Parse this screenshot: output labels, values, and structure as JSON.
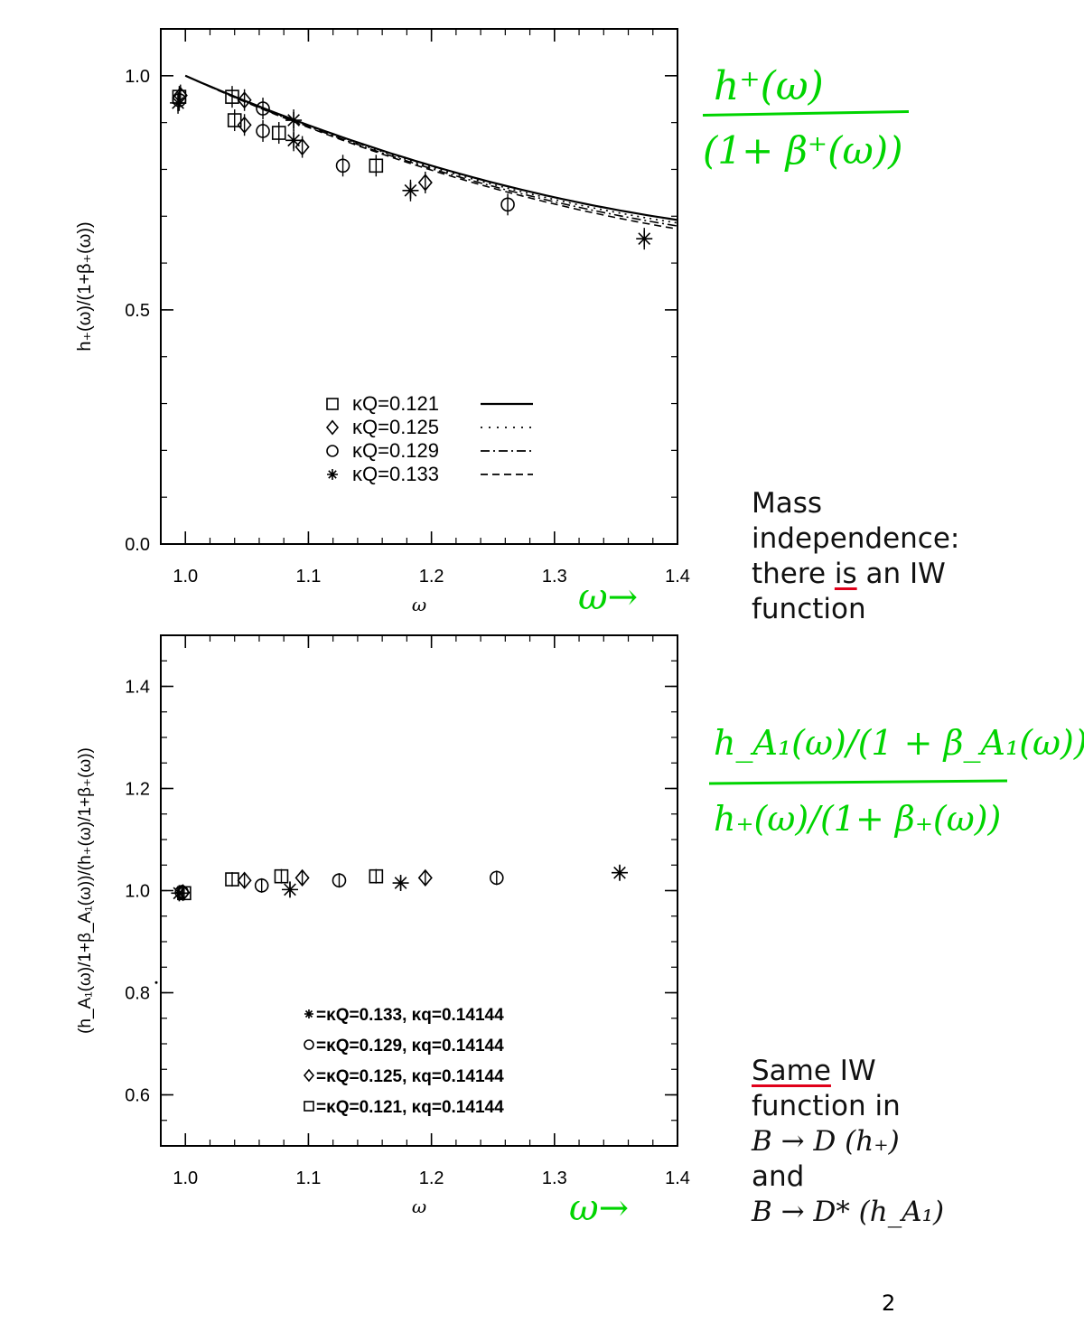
{
  "chart_data": [
    {
      "type": "scatter",
      "title": "",
      "xlabel": "ω",
      "ylabel": "h₊(ω)/(1+β₊(ω))",
      "xlim": [
        0.98,
        1.4
      ],
      "ylim": [
        0.0,
        1.1
      ],
      "xticks": [
        "1.0",
        "1.1",
        "1.2",
        "1.3",
        "1.4"
      ],
      "yticks": [
        "0.0",
        "0.5",
        "1.0"
      ],
      "legend_position": "bottom-center",
      "series": [
        {
          "name": "κQ=0.121",
          "marker": "square",
          "line": "solid",
          "x": [
            0.995,
            1.038,
            1.04,
            1.076,
            1.155
          ],
          "y": [
            0.955,
            0.955,
            0.905,
            0.878,
            0.808
          ]
        },
        {
          "name": "κQ=0.125",
          "marker": "diamond",
          "line": "dotted",
          "x": [
            0.996,
            1.048,
            1.048,
            1.095,
            1.195
          ],
          "y": [
            0.958,
            0.948,
            0.895,
            0.848,
            0.772
          ]
        },
        {
          "name": "κQ=0.129",
          "marker": "circle",
          "line": "dashdot",
          "x": [
            0.995,
            1.063,
            1.063,
            1.128,
            1.262
          ],
          "y": [
            0.948,
            0.93,
            0.882,
            0.808,
            0.725
          ]
        },
        {
          "name": "κQ=0.133",
          "marker": "asterisk",
          "line": "dashed",
          "x": [
            0.994,
            1.088,
            1.088,
            1.183,
            1.373
          ],
          "y": [
            0.942,
            0.905,
            0.862,
            0.755,
            0.652
          ]
        }
      ]
    },
    {
      "type": "scatter",
      "title": "",
      "xlabel": "ω",
      "ylabel": "(h_A₁(ω)/1+β_A₁(ω))/(h₊(ω)/1+β₊(ω))",
      "xlim": [
        0.98,
        1.4
      ],
      "ylim": [
        0.5,
        1.5
      ],
      "xticks": [
        "1.0",
        "1.1",
        "1.2",
        "1.3",
        "1.4"
      ],
      "yticks": [
        "0.6",
        "0.8",
        "1.0",
        "1.2",
        "1.4"
      ],
      "legend_position": "bottom-center",
      "series": [
        {
          "name": "=κQ=0.133, κq=0.14144",
          "marker": "asterisk",
          "x": [
            0.995,
            1.085,
            1.175,
            1.353
          ],
          "y": [
            0.995,
            1.002,
            1.015,
            1.035
          ]
        },
        {
          "name": "=κQ=0.129, κq=0.14144",
          "marker": "circle",
          "x": [
            0.997,
            1.062,
            1.125,
            1.253
          ],
          "y": [
            0.997,
            1.01,
            1.02,
            1.025
          ]
        },
        {
          "name": "=κQ=0.125, κq=0.14144",
          "marker": "diamond",
          "x": [
            0.998,
            1.048,
            1.095,
            1.195
          ],
          "y": [
            0.996,
            1.02,
            1.025,
            1.025
          ]
        },
        {
          "name": "=κQ=0.121, κq=0.14144",
          "marker": "square",
          "x": [
            0.999,
            1.038,
            1.078,
            1.155
          ],
          "y": [
            0.995,
            1.022,
            1.028,
            1.028
          ]
        }
      ]
    }
  ],
  "annotations": {
    "mass_lines": [
      "Mass",
      "independence:",
      "there ",
      "is",
      " an IW",
      "function"
    ],
    "same_prefix": "Same",
    "same_rest": " IW",
    "same_lines": [
      "function in",
      "B → D (h₊)",
      "and",
      "B → D* (h_A₁)"
    ],
    "green_top_num": "h⁺(ω)",
    "green_top_den": "(1+ β⁺(ω))",
    "green_bottom_num": "h_A₁(ω)/(1 + β_A₁(ω))",
    "green_bottom_den": "h₊(ω)/(1+ β₊(ω))",
    "green_arrow_label": "ω→",
    "page_number": "2"
  }
}
